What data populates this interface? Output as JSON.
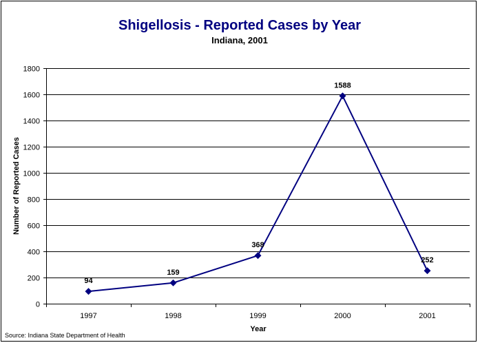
{
  "chart_data": {
    "type": "line",
    "title": "Shigellosis - Reported Cases by Year",
    "subtitle": "Indiana, 2001",
    "xlabel": "Year",
    "ylabel": "Number of Reported Cases",
    "categories": [
      "1997",
      "1998",
      "1999",
      "2000",
      "2001"
    ],
    "series": [
      {
        "name": "Reported Cases",
        "values": [
          94,
          159,
          368,
          1588,
          252
        ]
      }
    ],
    "data_labels": [
      "94",
      "159",
      "368",
      "1588",
      "252"
    ],
    "ylim": [
      0,
      1800
    ],
    "yticks": [
      0,
      200,
      400,
      600,
      800,
      1000,
      1200,
      1400,
      1600,
      1800
    ],
    "ytick_labels": [
      "0",
      "200",
      "400",
      "600",
      "800",
      "1000",
      "1200",
      "1400",
      "1600",
      "1800"
    ],
    "grid": true,
    "source": "Source: Indiana State Department of Health",
    "colors": {
      "line": "#000080",
      "title": "#000080"
    }
  }
}
